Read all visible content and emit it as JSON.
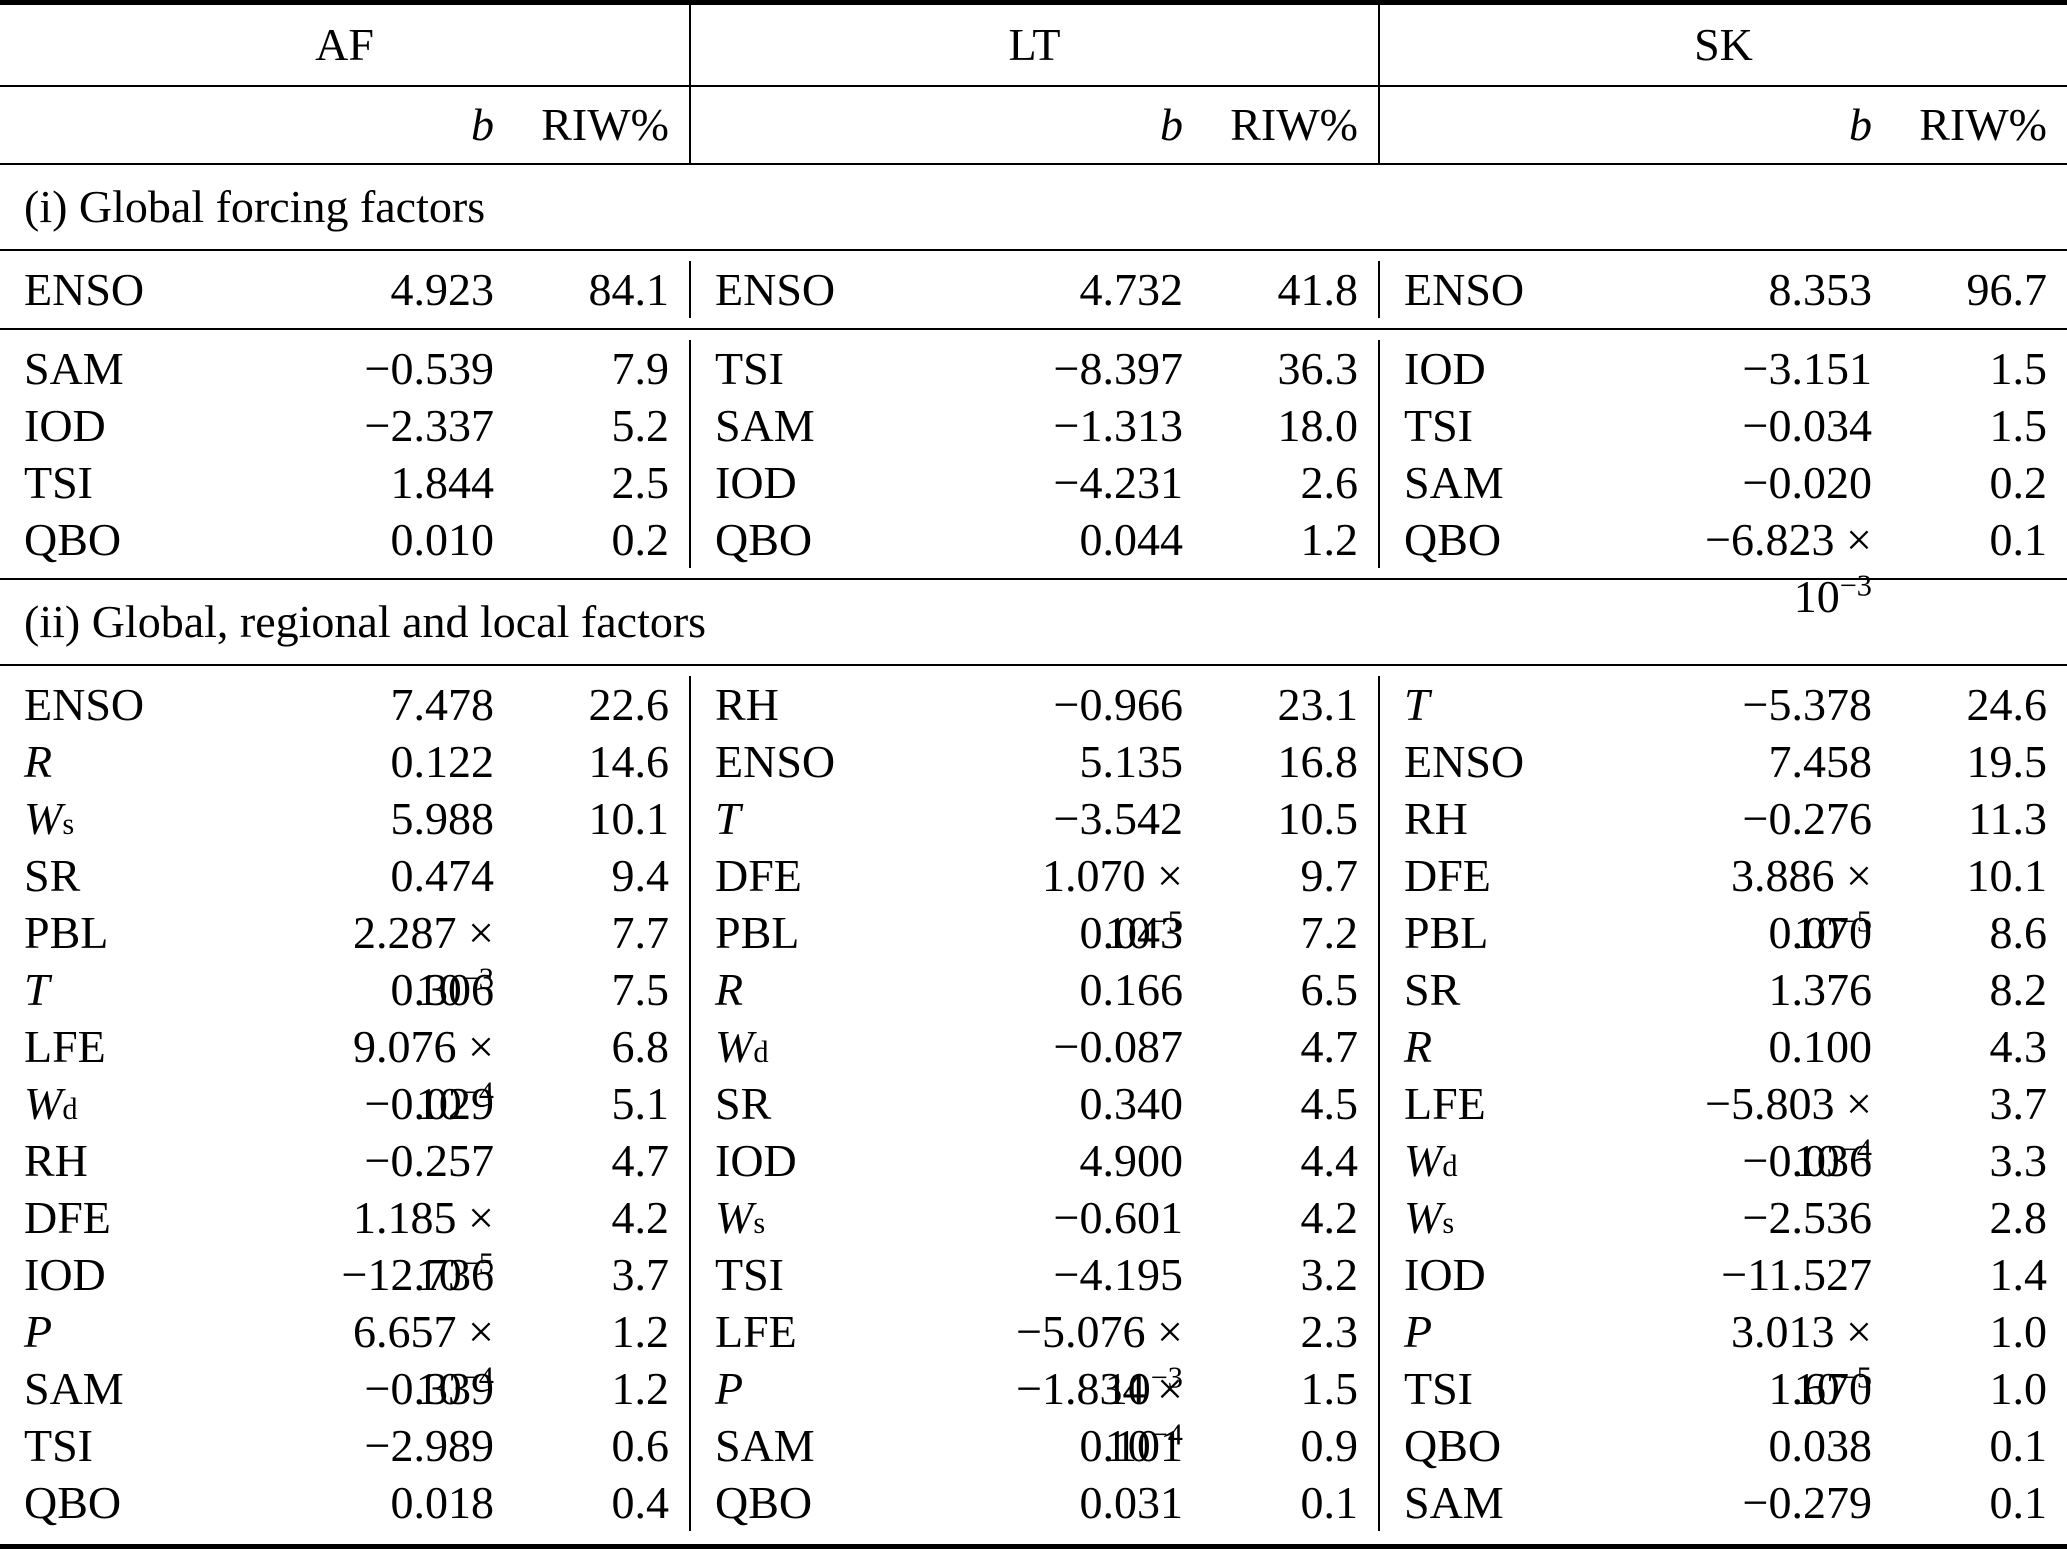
{
  "table": {
    "groups": [
      "AF",
      "LT",
      "SK"
    ],
    "col_headers": {
      "b": "b",
      "riw": "RIW%"
    },
    "sections": [
      {
        "label": "(i) Global forcing factors",
        "blocks": [
          {
            "rows": [
              [
                {
                  "v": "ENSO",
                  "b": "4.923",
                  "r": "84.1"
                },
                {
                  "v": "ENSO",
                  "b": "4.732",
                  "r": "41.8"
                },
                {
                  "v": "ENSO",
                  "b": "8.353",
                  "r": "96.7"
                }
              ]
            ]
          },
          {
            "rows": [
              [
                {
                  "v": "SAM",
                  "b": "−0.539",
                  "r": "7.9"
                },
                {
                  "v": "TSI",
                  "b": "−8.397",
                  "r": "36.3"
                },
                {
                  "v": "IOD",
                  "b": "−3.151",
                  "r": "1.5"
                }
              ],
              [
                {
                  "v": "IOD",
                  "b": "−2.337",
                  "r": "5.2"
                },
                {
                  "v": "SAM",
                  "b": "−1.313",
                  "r": "18.0"
                },
                {
                  "v": "TSI",
                  "b": "−0.034",
                  "r": "1.5"
                }
              ],
              [
                {
                  "v": "TSI",
                  "b": "1.844",
                  "r": "2.5"
                },
                {
                  "v": "IOD",
                  "b": "−4.231",
                  "r": "2.6"
                },
                {
                  "v": "SAM",
                  "b": "−0.020",
                  "r": "0.2"
                }
              ],
              [
                {
                  "v": "QBO",
                  "b": "0.010",
                  "r": "0.2"
                },
                {
                  "v": "QBO",
                  "b": "0.044",
                  "r": "1.2"
                },
                {
                  "v": "QBO",
                  "b": "−6.823 × 10",
                  "e": "−3",
                  "r": "0.1"
                }
              ]
            ]
          }
        ]
      },
      {
        "label": "(ii) Global, regional and local factors",
        "blocks": [
          {
            "rows": [
              [
                {
                  "v": "ENSO",
                  "b": "7.478",
                  "r": "22.6"
                },
                {
                  "v": "RH",
                  "b": "−0.966",
                  "r": "23.1"
                },
                {
                  "v": "T",
                  "i": true,
                  "b": "−5.378",
                  "r": "24.6"
                }
              ],
              [
                {
                  "v": "R",
                  "i": true,
                  "b": "0.122",
                  "r": "14.6"
                },
                {
                  "v": "ENSO",
                  "b": "5.135",
                  "r": "16.8"
                },
                {
                  "v": "ENSO",
                  "b": "7.458",
                  "r": "19.5"
                }
              ],
              [
                {
                  "v": "W",
                  "i": true,
                  "s": "s",
                  "b": "5.988",
                  "r": "10.1"
                },
                {
                  "v": "T",
                  "i": true,
                  "b": "−3.542",
                  "r": "10.5"
                },
                {
                  "v": "RH",
                  "b": "−0.276",
                  "r": "11.3"
                }
              ],
              [
                {
                  "v": "SR",
                  "b": "0.474",
                  "r": "9.4"
                },
                {
                  "v": "DFE",
                  "b": "1.070 × 10",
                  "e": "−5",
                  "r": "9.7"
                },
                {
                  "v": "DFE",
                  "b": "3.886 × 10",
                  "e": "−5",
                  "r": "10.1"
                }
              ],
              [
                {
                  "v": "PBL",
                  "b": "2.287 × 10",
                  "e": "−3",
                  "r": "7.7"
                },
                {
                  "v": "PBL",
                  "b": "0.043",
                  "r": "7.2"
                },
                {
                  "v": "PBL",
                  "b": "0.070",
                  "r": "8.6"
                }
              ],
              [
                {
                  "v": "T",
                  "i": true,
                  "b": "0.306",
                  "r": "7.5"
                },
                {
                  "v": "R",
                  "i": true,
                  "b": "0.166",
                  "r": "6.5"
                },
                {
                  "v": "SR",
                  "b": "1.376",
                  "r": "8.2"
                }
              ],
              [
                {
                  "v": "LFE",
                  "b": "9.076 × 10",
                  "e": "−4",
                  "r": "6.8"
                },
                {
                  "v": "W",
                  "i": true,
                  "s": "d",
                  "b": "−0.087",
                  "r": "4.7"
                },
                {
                  "v": "R",
                  "i": true,
                  "b": "0.100",
                  "r": "4.3"
                }
              ],
              [
                {
                  "v": "W",
                  "i": true,
                  "s": "d",
                  "b": "−0.029",
                  "r": "5.1"
                },
                {
                  "v": "SR",
                  "b": "0.340",
                  "r": "4.5"
                },
                {
                  "v": "LFE",
                  "b": "−5.803 × 10",
                  "e": "−4",
                  "r": "3.7"
                }
              ],
              [
                {
                  "v": "RH",
                  "b": "−0.257",
                  "r": "4.7"
                },
                {
                  "v": "IOD",
                  "b": "4.900",
                  "r": "4.4"
                },
                {
                  "v": "W",
                  "i": true,
                  "s": "d",
                  "b": "−0.036",
                  "r": "3.3"
                }
              ],
              [
                {
                  "v": "DFE",
                  "b": "1.185 × 10",
                  "e": "−5",
                  "r": "4.2"
                },
                {
                  "v": "W",
                  "i": true,
                  "s": "s",
                  "b": "−0.601",
                  "r": "4.2"
                },
                {
                  "v": "W",
                  "i": true,
                  "s": "s",
                  "b": "−2.536",
                  "r": "2.8"
                }
              ],
              [
                {
                  "v": "IOD",
                  "b": "−12.736",
                  "r": "3.7"
                },
                {
                  "v": "TSI",
                  "b": "−4.195",
                  "r": "3.2"
                },
                {
                  "v": "IOD",
                  "b": "−11.527",
                  "r": "1.4"
                }
              ],
              [
                {
                  "v": "P",
                  "i": true,
                  "b": "6.657 × 10",
                  "e": "−4",
                  "r": "1.2"
                },
                {
                  "v": "LFE",
                  "b": "−5.076 × 10",
                  "e": "−3",
                  "r": "2.3"
                },
                {
                  "v": "P",
                  "i": true,
                  "b": "3.013 × 10",
                  "e": "−5",
                  "r": "1.0"
                }
              ],
              [
                {
                  "v": "SAM",
                  "b": "−0.339",
                  "r": "1.2"
                },
                {
                  "v": "P",
                  "i": true,
                  "b": "−1.834 × 10",
                  "e": "−4",
                  "r": "1.5"
                },
                {
                  "v": "TSI",
                  "b": "1.670",
                  "r": "1.0"
                }
              ],
              [
                {
                  "v": "TSI",
                  "b": "−2.989",
                  "r": "0.6"
                },
                {
                  "v": "SAM",
                  "b": "0.101",
                  "r": "0.9"
                },
                {
                  "v": "QBO",
                  "b": "0.038",
                  "r": "0.1"
                }
              ],
              [
                {
                  "v": "QBO",
                  "b": "0.018",
                  "r": "0.4"
                },
                {
                  "v": "QBO",
                  "b": "0.031",
                  "r": "0.1"
                },
                {
                  "v": "SAM",
                  "b": "−0.279",
                  "r": "0.1"
                }
              ]
            ]
          }
        ]
      }
    ]
  }
}
